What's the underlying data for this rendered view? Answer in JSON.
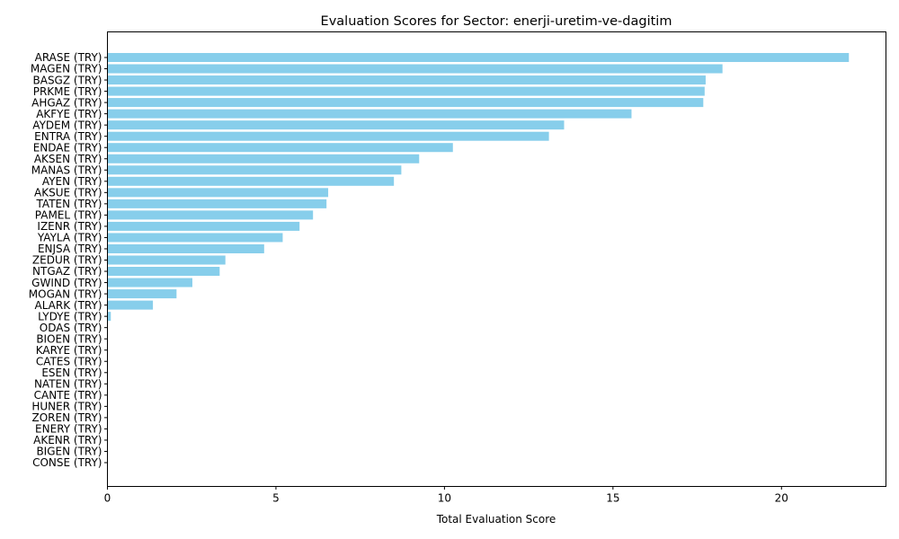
{
  "chart_data": {
    "type": "bar",
    "orientation": "horizontal",
    "title": "Evaluation Scores for Sector: enerji-uretim-ve-dagitim",
    "xlabel": "Total Evaluation Score",
    "ylabel": "",
    "xlim": [
      0,
      23.1
    ],
    "xticks": [
      0,
      5,
      10,
      15,
      20
    ],
    "grid": false,
    "bar_color": "#87ceeb",
    "categories": [
      "ARASE (TRY)",
      "MAGEN (TRY)",
      "BASGZ (TRY)",
      "PRKME (TRY)",
      "AHGAZ (TRY)",
      "AKFYE (TRY)",
      "AYDEM (TRY)",
      "ENTRA (TRY)",
      "ENDAE (TRY)",
      "AKSEN (TRY)",
      "MANAS (TRY)",
      "AYEN (TRY)",
      "AKSUE (TRY)",
      "TATEN (TRY)",
      "PAMEL (TRY)",
      "IZENR (TRY)",
      "YAYLA (TRY)",
      "ENJSA (TRY)",
      "ZEDUR (TRY)",
      "NTGAZ (TRY)",
      "GWIND (TRY)",
      "MOGAN (TRY)",
      "ALARK (TRY)",
      "LYDYE (TRY)",
      "ODAS (TRY)",
      "BIOEN (TRY)",
      "KARYE (TRY)",
      "CATES (TRY)",
      "ESEN (TRY)",
      "NATEN (TRY)",
      "CANTE (TRY)",
      "HUNER (TRY)",
      "ZOREN (TRY)",
      "ENERY (TRY)",
      "AKENR (TRY)",
      "BIGEN (TRY)",
      "CONSE (TRY)"
    ],
    "values": [
      22.0,
      18.25,
      17.75,
      17.72,
      17.68,
      15.55,
      13.55,
      13.1,
      10.25,
      9.25,
      8.72,
      8.5,
      6.55,
      6.5,
      6.1,
      5.7,
      5.2,
      4.65,
      3.5,
      3.33,
      2.52,
      2.05,
      1.35,
      0.1,
      0,
      0,
      0,
      0,
      0,
      0,
      0,
      0,
      0,
      0,
      0,
      0,
      0
    ]
  }
}
